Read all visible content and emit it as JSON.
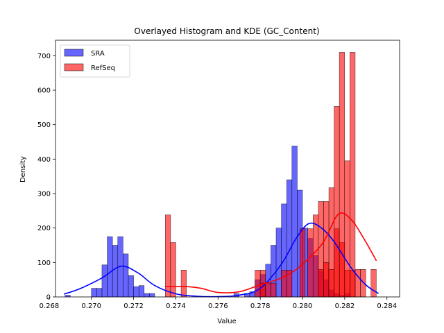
{
  "chart_data": {
    "type": "histogram",
    "title": "Overlayed Histogram and KDE (GC_Content)",
    "xlabel": "Value",
    "ylabel": "Density",
    "xlim": [
      0.2683,
      0.2846
    ],
    "ylim": [
      0,
      745
    ],
    "xticks": [
      0.268,
      0.27,
      0.272,
      0.274,
      0.276,
      0.278,
      0.28,
      0.282,
      0.284
    ],
    "xtick_labels": [
      "0.268",
      "0.270",
      "0.272",
      "0.274",
      "0.276",
      "0.278",
      "0.280",
      "0.282",
      "0.284"
    ],
    "yticks": [
      0,
      100,
      200,
      300,
      400,
      500,
      600,
      700
    ],
    "ytick_labels": [
      "0",
      "100",
      "200",
      "300",
      "400",
      "500",
      "600",
      "700"
    ],
    "grid": false,
    "legend": {
      "position": "top-left",
      "entries": [
        "SRA",
        "RefSeq"
      ]
    },
    "series": [
      {
        "name": "SRA",
        "color": "#0000ff",
        "bin_start": 0.26875,
        "bin_width": 0.00025,
        "counts": [
          5,
          0,
          0,
          0,
          0,
          25,
          25,
          93,
          175,
          150,
          175,
          125,
          62,
          30,
          33,
          10,
          10,
          0,
          0,
          0,
          0,
          0,
          0,
          0,
          0,
          0,
          0,
          0,
          0,
          0,
          0,
          0,
          10,
          0,
          10,
          15,
          50,
          65,
          95,
          150,
          200,
          270,
          340,
          438,
          310,
          200,
          170,
          120,
          75,
          50,
          20,
          10,
          5,
          10
        ],
        "kde": [
          [
            0.2687,
            8
          ],
          [
            0.2695,
            25
          ],
          [
            0.2705,
            55
          ],
          [
            0.2714,
            89
          ],
          [
            0.2722,
            70
          ],
          [
            0.273,
            33
          ],
          [
            0.274,
            9
          ],
          [
            0.275,
            2
          ],
          [
            0.276,
            1
          ],
          [
            0.277,
            5
          ],
          [
            0.278,
            25
          ],
          [
            0.279,
            95
          ],
          [
            0.2797,
            170
          ],
          [
            0.2803,
            213
          ],
          [
            0.2809,
            200
          ],
          [
            0.2815,
            160
          ],
          [
            0.2823,
            85
          ],
          [
            0.283,
            35
          ],
          [
            0.2836,
            10
          ]
        ]
      },
      {
        "name": "RefSeq",
        "color": "#ff0000",
        "bin_start": 0.2735,
        "bin_width": 0.00025,
        "counts": [
          238,
          158,
          0,
          78,
          0,
          0,
          0,
          0,
          0,
          0,
          0,
          0,
          0,
          0,
          0,
          0,
          0,
          78,
          78,
          40,
          40,
          0,
          78,
          78,
          0,
          0,
          0,
          198,
          238,
          277,
          277,
          317,
          198,
          158,
          78,
          78,
          0,
          0,
          0,
          0,
          0,
          0,
          0,
          0,
          0,
          0,
          0,
          0,
          0,
          0,
          0,
          0,
          0,
          0,
          0,
          0,
          0,
          0,
          0,
          0,
          0,
          0,
          0,
          0,
          0
        ],
        "extra_bins": [
          [
            0.27812,
            40
          ],
          [
            0.28,
            198
          ],
          [
            0.28087,
            80
          ],
          [
            0.28112,
            100
          ],
          [
            0.28137,
            80
          ],
          [
            0.28162,
            553
          ],
          [
            0.28187,
            710
          ],
          [
            0.28212,
            395
          ],
          [
            0.28237,
            710
          ],
          [
            0.28262,
            80
          ],
          [
            0.28287,
            80
          ],
          [
            0.28337,
            80
          ]
        ],
        "kde": [
          [
            0.2735,
            30
          ],
          [
            0.2745,
            30
          ],
          [
            0.2752,
            25
          ],
          [
            0.276,
            13
          ],
          [
            0.277,
            15
          ],
          [
            0.278,
            35
          ],
          [
            0.2788,
            50
          ],
          [
            0.2796,
            75
          ],
          [
            0.2803,
            112
          ],
          [
            0.281,
            160
          ],
          [
            0.2817,
            240
          ],
          [
            0.2823,
            225
          ],
          [
            0.2829,
            170
          ],
          [
            0.2835,
            105
          ]
        ]
      }
    ]
  }
}
